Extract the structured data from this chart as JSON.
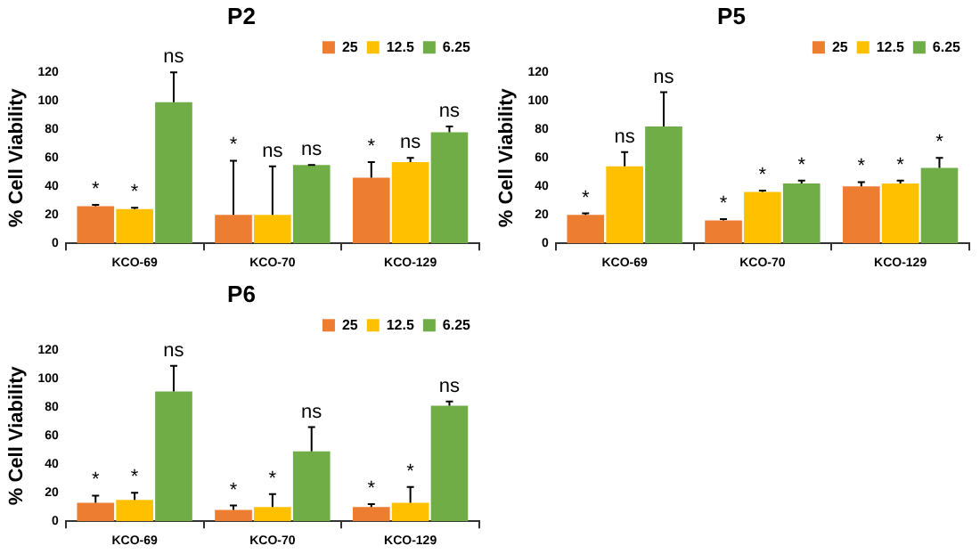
{
  "chart_data": [
    {
      "type": "bar",
      "title": "P2",
      "ylabel": "% Cell Viability",
      "categories": [
        "KCO-69",
        "KCO-70",
        "KCO-129"
      ],
      "ylim": [
        0,
        120
      ],
      "yticks": [
        0,
        20,
        40,
        60,
        80,
        100,
        120
      ],
      "grid": false,
      "legend": "top right",
      "series": [
        {
          "name": "25",
          "color": "#ed7d31",
          "values": [
            26,
            20,
            46
          ],
          "errors": [
            [
              26,
              27
            ],
            [
              20,
              58
            ],
            [
              46,
              57
            ]
          ],
          "value_labels": [
            "*",
            "*",
            "*"
          ]
        },
        {
          "name": "12.5",
          "color": "#ffc000",
          "values": [
            24,
            20,
            57
          ],
          "errors": [
            [
              24,
              25
            ],
            [
              20,
              54
            ],
            [
              57,
              60
            ]
          ],
          "value_labels": [
            "*",
            "ns",
            "ns"
          ]
        },
        {
          "name": "6.25",
          "color": "#70ad47",
          "values": [
            99,
            55,
            78
          ],
          "errors": [
            [
              99,
              120
            ],
            [
              55,
              55
            ],
            [
              78,
              82
            ]
          ],
          "value_labels": [
            "ns",
            "ns",
            "ns"
          ]
        }
      ]
    },
    {
      "type": "bar",
      "title": "P5",
      "ylabel": "% Cell Viability",
      "categories": [
        "KCO-69",
        "KCO-70",
        "KCO-129"
      ],
      "ylim": [
        0,
        120
      ],
      "yticks": [
        0,
        20,
        40,
        60,
        80,
        100,
        120
      ],
      "grid": false,
      "legend": "top right",
      "series": [
        {
          "name": "25",
          "color": "#ed7d31",
          "values": [
            20,
            16,
            40
          ],
          "errors": [
            [
              20,
              21
            ],
            [
              16,
              17
            ],
            [
              40,
              43
            ]
          ],
          "value_labels": [
            "*",
            "*",
            "*"
          ]
        },
        {
          "name": "12.5",
          "color": "#ffc000",
          "values": [
            54,
            36,
            42
          ],
          "errors": [
            [
              54,
              64
            ],
            [
              36,
              37
            ],
            [
              42,
              44
            ]
          ],
          "value_labels": [
            "ns",
            "*",
            "*"
          ]
        },
        {
          "name": "6.25",
          "color": "#70ad47",
          "values": [
            82,
            42,
            53
          ],
          "errors": [
            [
              82,
              106
            ],
            [
              42,
              44
            ],
            [
              53,
              60
            ]
          ],
          "value_labels": [
            "ns",
            "*",
            "*"
          ]
        }
      ]
    },
    {
      "type": "bar",
      "title": "P6",
      "ylabel": "% Cell Viability",
      "categories": [
        "KCO-69",
        "KCO-70",
        "KCO-129"
      ],
      "ylim": [
        0,
        120
      ],
      "yticks": [
        0,
        20,
        40,
        60,
        80,
        100,
        120
      ],
      "grid": false,
      "legend": "top right",
      "series": [
        {
          "name": "25",
          "color": "#ed7d31",
          "values": [
            13,
            8,
            10
          ],
          "errors": [
            [
              13,
              18
            ],
            [
              8,
              11
            ],
            [
              10,
              12
            ]
          ],
          "value_labels": [
            "*",
            "*",
            "*"
          ]
        },
        {
          "name": "12.5",
          "color": "#ffc000",
          "values": [
            15,
            10,
            13
          ],
          "errors": [
            [
              15,
              20
            ],
            [
              10,
              19
            ],
            [
              13,
              24
            ]
          ],
          "value_labels": [
            "*",
            "*",
            "*"
          ]
        },
        {
          "name": "6.25",
          "color": "#70ad47",
          "values": [
            91,
            49,
            81
          ],
          "errors": [
            [
              91,
              109
            ],
            [
              49,
              66
            ],
            [
              81,
              84
            ]
          ],
          "value_labels": [
            "ns",
            "ns",
            "ns"
          ]
        }
      ]
    }
  ]
}
